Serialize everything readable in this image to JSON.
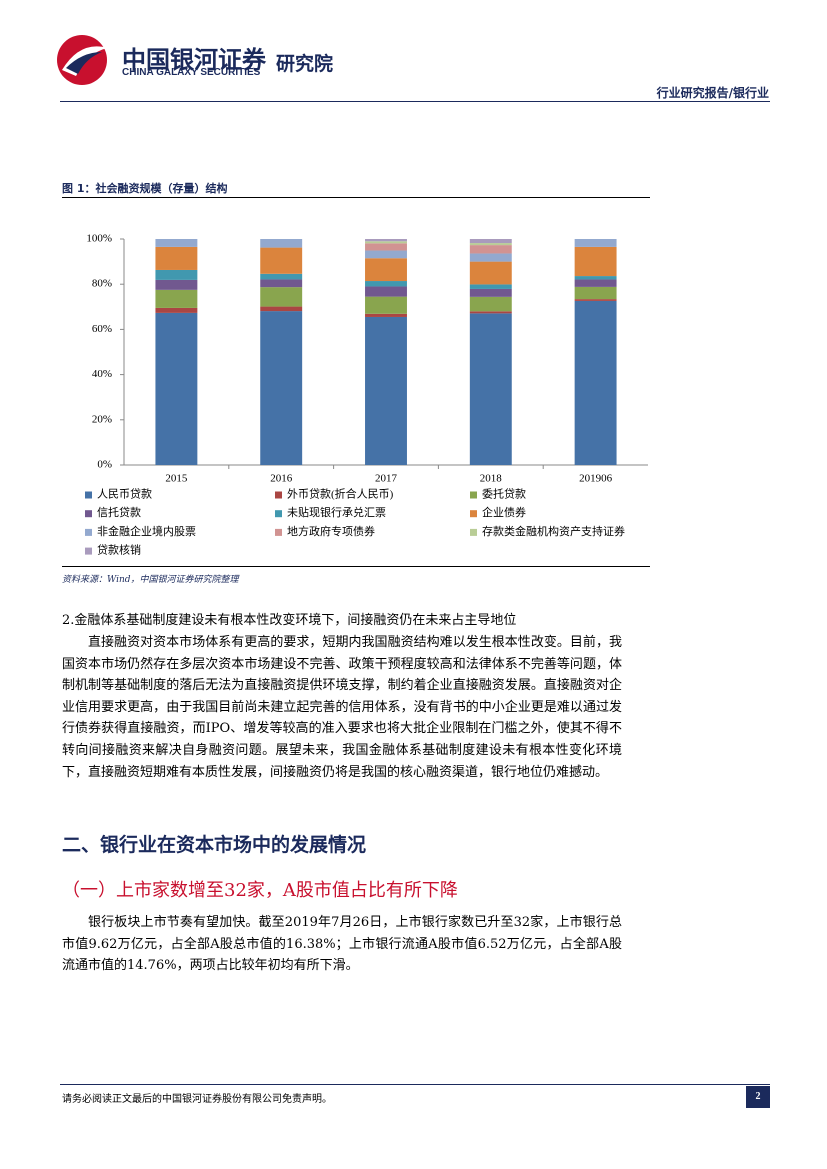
{
  "header": {
    "brand": "中国银河证券",
    "brand_en": "CHINA GALAXY SECURITIES",
    "institute": "研究院",
    "report_type": "行业研究报告/银行业"
  },
  "figure": {
    "caption": "图 1：社会融资规模（存量）结构",
    "source": "资料来源：Wind，中国银河证券研究院整理"
  },
  "chart_data": {
    "type": "bar",
    "stacked": true,
    "grid": false,
    "categories": [
      "2015",
      "2016",
      "2017",
      "2018",
      "201906"
    ],
    "ylim": [
      0,
      100
    ],
    "yticks": [
      {
        "value": 0,
        "label": "0%"
      },
      {
        "value": 20,
        "label": "20%"
      },
      {
        "value": 40,
        "label": "40%"
      },
      {
        "value": 60,
        "label": "60%"
      },
      {
        "value": 80,
        "label": "80%"
      },
      {
        "value": 100,
        "label": "100%"
      }
    ],
    "series": [
      {
        "name": "人民币贷款",
        "color": "#4572a7",
        "values": [
          67.3,
          68.1,
          65.5,
          67.1,
          72.6
        ]
      },
      {
        "name": "外币贷款(折合人民币)",
        "color": "#aa4643",
        "values": [
          2.2,
          2.0,
          1.4,
          0.9,
          0.8
        ]
      },
      {
        "name": "委托贷款",
        "color": "#89a54e",
        "values": [
          8.0,
          8.6,
          7.6,
          6.4,
          5.4
        ]
      },
      {
        "name": "信托贷款",
        "color": "#71588f",
        "values": [
          4.4,
          3.4,
          4.5,
          3.5,
          3.3
        ]
      },
      {
        "name": "未贴现银行承兑汇票",
        "color": "#4198af",
        "values": [
          4.4,
          2.5,
          2.4,
          2.0,
          1.5
        ]
      },
      {
        "name": "企业债券",
        "color": "#db843d",
        "values": [
          10.2,
          11.6,
          10.1,
          10.1,
          12.9
        ]
      },
      {
        "name": "非金融企业境内股票",
        "color": "#93a9cf",
        "values": [
          3.5,
          3.8,
          3.4,
          3.6,
          3.5
        ]
      },
      {
        "name": "地方政府专项债券",
        "color": "#d19392",
        "values": [
          0,
          0,
          3.2,
          3.7,
          0
        ]
      },
      {
        "name": "存款类金融机构资产支持证券",
        "color": "#b9cd96",
        "values": [
          0,
          0,
          0.9,
          0.9,
          0
        ]
      },
      {
        "name": "贷款核销",
        "color": "#a99bbd",
        "values": [
          0,
          0,
          1.0,
          1.8,
          0
        ]
      }
    ]
  },
  "body": {
    "point": "2.金融体系基础制度建设未有根本性改变环境下，间接融资仍在未来占主导地位",
    "paragraph_1": "直接融资对资本市场体系有更高的要求，短期内我国融资结构难以发生根本性改变。目前，我国资本市场仍然存在多层次资本市场建设不完善、政策干预程度较高和法律体系不完善等问题，体制机制等基础制度的落后无法为直接融资提供环境支撑，制约着企业直接融资发展。直接融资对企业信用要求更高，由于我国目前尚未建立起完善的信用体系，没有背书的中小企业更是难以通过发行债券获得直接融资，而IPO、增发等较高的准入要求也将大批企业限制在门槛之外，使其不得不转向间接融资来解决自身融资问题。展望未来，我国金融体系基础制度建设未有根本性变化环境下，直接融资短期难有本质性发展，间接融资仍将是我国的核心融资渠道，银行地位仍难撼动。",
    "heading": "二、银行业在资本市场中的发展情况",
    "subheading": "（一）上市家数增至32家，A股市值占比有所下降",
    "paragraph_2": "银行板块上市节奏有望加快。截至2019年7月26日，上市银行家数已升至32家，上市银行总市值9.62万亿元，占全部A股总市值的16.38%；上市银行流通A股市值6.52万亿元，占全部A股流通市值的14.76%，两项占比较年初均有所下滑。"
  },
  "footer": {
    "disclaimer": "请务必阅读正文最后的中国银河证券股份有限公司免责声明。",
    "page": "2"
  }
}
